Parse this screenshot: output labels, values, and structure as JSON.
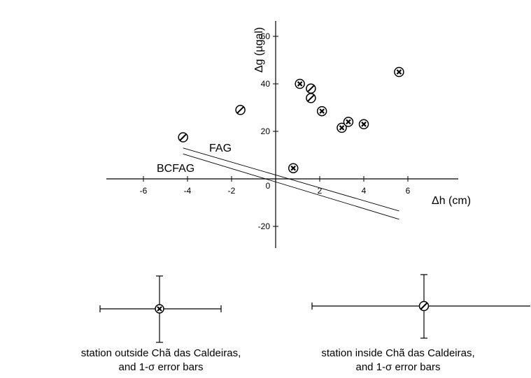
{
  "chart_data": {
    "type": "scatter",
    "xlabel": "Δh (cm)",
    "ylabel": "Δg (µgal)",
    "xlim": [
      -7.2,
      8.3
    ],
    "ylim": [
      -29,
      66
    ],
    "x_ticks": [
      -6,
      -4,
      -2,
      0,
      2,
      4,
      6
    ],
    "y_ticks": [
      -20,
      20,
      40,
      60
    ],
    "origin_label": "0",
    "series": [
      {
        "name": "station outside Chã das Caldeiras",
        "marker": "circle-cross",
        "points": [
          {
            "x": 0.8,
            "y": 4.5
          },
          {
            "x": 1.1,
            "y": 40
          },
          {
            "x": 2.1,
            "y": 28.5
          },
          {
            "x": 3.0,
            "y": 21.5
          },
          {
            "x": 3.3,
            "y": 24
          },
          {
            "x": 4.0,
            "y": 23
          },
          {
            "x": 5.6,
            "y": 45
          }
        ]
      },
      {
        "name": "station inside Chã das Caldeiras",
        "marker": "circle-slash",
        "points": [
          {
            "x": -4.2,
            "y": 17.5
          },
          {
            "x": -1.6,
            "y": 29
          },
          {
            "x": 1.6,
            "y": 38
          },
          {
            "x": 1.6,
            "y": 34
          }
        ]
      }
    ],
    "lines": [
      {
        "name": "FAG",
        "x": [
          -4.2,
          5.6
        ],
        "y": [
          13,
          -13.5
        ]
      },
      {
        "name": "BCFAG",
        "x": [
          -4.2,
          5.6
        ],
        "y": [
          10.5,
          -17
        ]
      }
    ]
  },
  "legend": {
    "outside_caption_line1": "station outside Chã das Caldeiras,",
    "outside_caption_line2": "and 1-σ error bars",
    "inside_caption_line1": "station inside Chã das Caldeiras,",
    "inside_caption_line2": "and 1-σ error bars"
  }
}
